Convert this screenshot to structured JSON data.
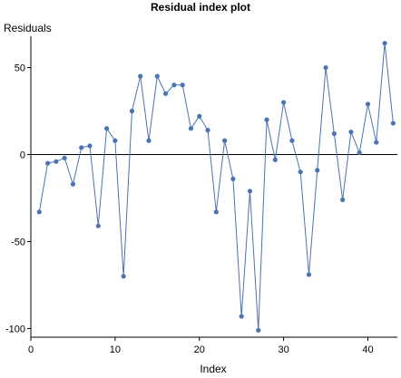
{
  "chart_data": {
    "type": "line",
    "title": "Residual index plot",
    "xlabel": "Index",
    "ylabel": "Residuals",
    "xlim": [
      0,
      43.5
    ],
    "ylim": [
      -105,
      68
    ],
    "xticks": [
      0,
      10,
      20,
      30,
      40
    ],
    "yticks": [
      -100,
      -50,
      0,
      50
    ],
    "reference_line": 0,
    "grid": false,
    "legend": "none",
    "colors": {
      "series": "#4a74b4",
      "axis": "#000000"
    },
    "series": [
      {
        "x": [
          1,
          2,
          3,
          4,
          5,
          6,
          7,
          8,
          9,
          10,
          11,
          12,
          13,
          14,
          15,
          16,
          17,
          18,
          19,
          20,
          21,
          22,
          23,
          24,
          25,
          26,
          27,
          28,
          29,
          30,
          31,
          32,
          33,
          34,
          35,
          36,
          37,
          38,
          39,
          40,
          41,
          42,
          43
        ],
        "values": [
          -33,
          -5,
          -4,
          -2,
          -17,
          4,
          5,
          -41,
          15,
          8,
          -70,
          25,
          45,
          8,
          45,
          35,
          40,
          40,
          15,
          22,
          14,
          -33,
          8,
          -14,
          -93,
          -21,
          -101,
          20,
          -3,
          30,
          8,
          -10,
          -69,
          -9,
          50,
          12,
          -26,
          13,
          1,
          29,
          7,
          64,
          18
        ]
      }
    ]
  }
}
